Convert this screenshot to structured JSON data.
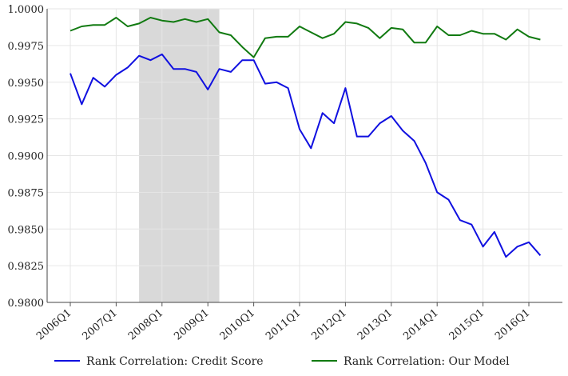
{
  "chart_data": {
    "type": "line",
    "title": "",
    "xlabel": "",
    "ylabel": "",
    "x_start": "2006Q1",
    "x_tick_labels": [
      "2006Q1",
      "2007Q1",
      "2008Q1",
      "2009Q1",
      "2010Q1",
      "2011Q1",
      "2012Q1",
      "2013Q1",
      "2014Q1",
      "2015Q1",
      "2016Q1"
    ],
    "ylim": [
      0.98,
      1.0
    ],
    "y_tick_labels": [
      "0.9800",
      "0.9825",
      "0.9850",
      "0.9875",
      "0.9900",
      "0.9925",
      "0.9950",
      "0.9975",
      "1.0000"
    ],
    "y_ticks": [
      0.98,
      0.9825,
      0.985,
      0.9875,
      0.99,
      0.9925,
      0.995,
      0.9975,
      1.0
    ],
    "grid": true,
    "legend_position": "bottom",
    "shaded_region": {
      "from": "2007Q3",
      "to": "2009Q2",
      "color": "#d9d9d9"
    },
    "series": [
      {
        "name": "Rank Correlation: Credit Score",
        "color": "#1010e0",
        "values": [
          0.9956,
          0.9935,
          0.9953,
          0.9947,
          0.9955,
          0.996,
          0.9968,
          0.9965,
          0.9969,
          0.9959,
          0.9959,
          0.9957,
          0.9945,
          0.9959,
          0.9957,
          0.9965,
          0.9965,
          0.9949,
          0.995,
          0.9946,
          0.9918,
          0.9905,
          0.9929,
          0.9922,
          0.9946,
          0.9913,
          0.9913,
          0.9922,
          0.9927,
          0.9917,
          0.991,
          0.9895,
          0.9875,
          0.987,
          0.9856,
          0.9853,
          0.9838,
          0.9848,
          0.9831,
          0.9838,
          0.9841,
          0.9832
        ]
      },
      {
        "name": "Rank Correlation: Our Model",
        "color": "#117a11",
        "values": [
          0.9985,
          0.9988,
          0.9989,
          0.9989,
          0.9994,
          0.9988,
          0.999,
          0.9994,
          0.9992,
          0.9991,
          0.9993,
          0.9991,
          0.9993,
          0.9984,
          0.9982,
          0.9974,
          0.9967,
          0.998,
          0.9981,
          0.9981,
          0.9988,
          0.9984,
          0.998,
          0.9983,
          0.9991,
          0.999,
          0.9987,
          0.998,
          0.9987,
          0.9986,
          0.9977,
          0.9977,
          0.9988,
          0.9982,
          0.9982,
          0.9985,
          0.9983,
          0.9983,
          0.9979,
          0.9986,
          0.9981,
          0.9979
        ]
      }
    ]
  }
}
